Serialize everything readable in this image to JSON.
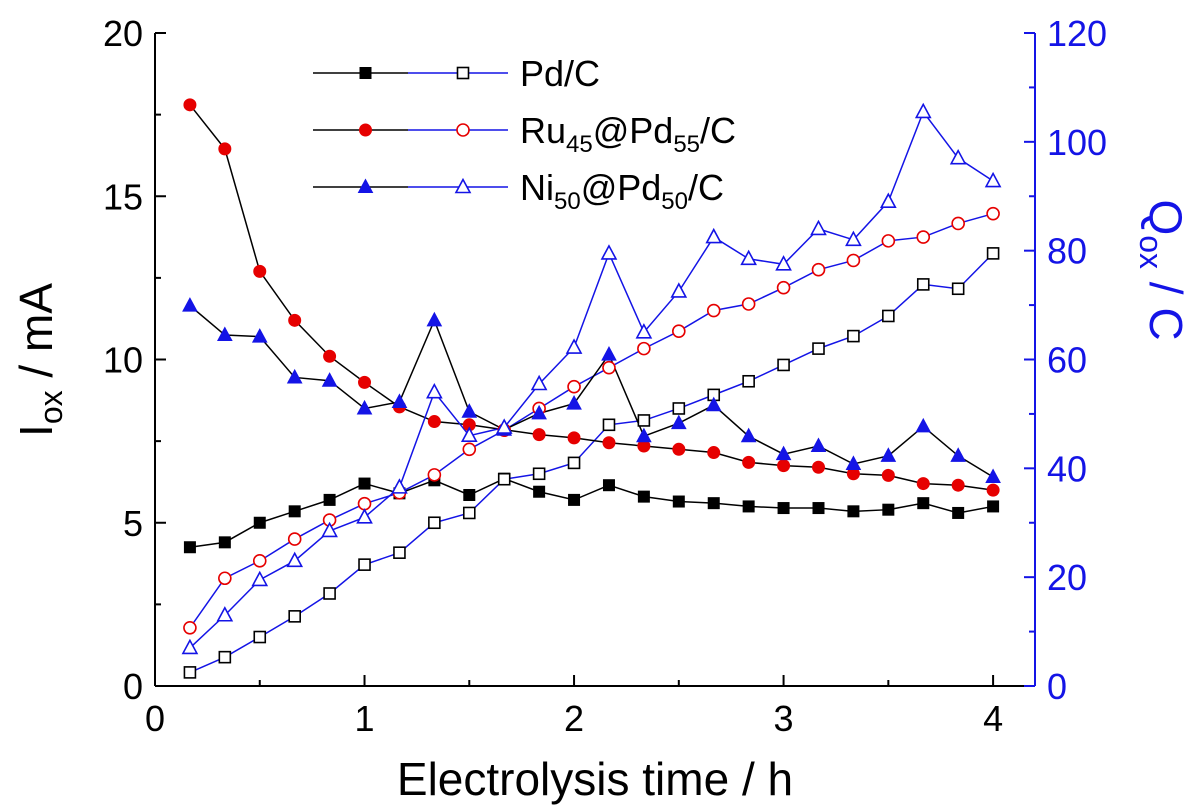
{
  "chart_data": {
    "type": "line",
    "xlabel": "Electrolysis time / h",
    "ylabel_left": {
      "main": "I",
      "sub": "ox",
      "rest": " / mA"
    },
    "ylabel_right": {
      "main": "Q",
      "sub": "ox",
      "rest": " / C"
    },
    "xlim": [
      0,
      4.2
    ],
    "ylim_left": [
      0,
      20
    ],
    "ylim_right": [
      0,
      120
    ],
    "xticks": [
      "0",
      "1",
      "2",
      "3",
      "4"
    ],
    "yticks_left": [
      "0",
      "5",
      "10",
      "15",
      "20"
    ],
    "yticks_right": [
      "0",
      "20",
      "40",
      "60",
      "80",
      "100",
      "120"
    ],
    "right_axis_color": "#1414e6",
    "legend_position": "top-center",
    "legend": [
      {
        "parts": [
          {
            "t": "Pd/C"
          }
        ]
      },
      {
        "parts": [
          {
            "t": "Ru"
          },
          {
            "t": "45",
            "sub": true
          },
          {
            "t": "@Pd"
          },
          {
            "t": "55",
            "sub": true
          },
          {
            "t": "/C"
          }
        ]
      },
      {
        "parts": [
          {
            "t": "Ni"
          },
          {
            "t": "50",
            "sub": true
          },
          {
            "t": "@Pd"
          },
          {
            "t": "50",
            "sub": true
          },
          {
            "t": "/C"
          }
        ]
      }
    ],
    "x": [
      0.1667,
      0.3333,
      0.5,
      0.6667,
      0.8333,
      1.0,
      1.1667,
      1.3333,
      1.5,
      1.6667,
      1.8333,
      2.0,
      2.1667,
      2.3333,
      2.5,
      2.6667,
      2.8333,
      3.0,
      3.1667,
      3.3333,
      3.5,
      3.6667,
      3.8333,
      4.0
    ],
    "series": [
      {
        "catalyst": 0,
        "axis": "left",
        "marker": "square",
        "filled": true,
        "color": "#000000",
        "line_color": "#000000",
        "values": [
          4.25,
          4.4,
          5.0,
          5.35,
          5.7,
          6.2,
          5.9,
          6.3,
          5.85,
          6.35,
          5.95,
          5.7,
          6.15,
          5.8,
          5.65,
          5.6,
          5.5,
          5.45,
          5.45,
          5.35,
          5.4,
          5.6,
          5.3,
          5.5
        ]
      },
      {
        "catalyst": 0,
        "axis": "right",
        "marker": "square",
        "filled": false,
        "color": "#000000",
        "line_color": "#1414e6",
        "values": [
          2.5,
          5.3,
          9.0,
          12.8,
          17.0,
          22.3,
          24.5,
          30.0,
          31.8,
          38.0,
          39.0,
          41.0,
          48.0,
          48.8,
          51.0,
          53.5,
          56.0,
          59.0,
          62.0,
          64.3,
          68.0,
          73.8,
          73.0,
          79.5
        ]
      },
      {
        "catalyst": 1,
        "axis": "left",
        "marker": "circle",
        "filled": true,
        "color": "#e60000",
        "line_color": "#000000",
        "values": [
          17.8,
          16.45,
          12.7,
          11.2,
          10.1,
          9.3,
          8.55,
          8.1,
          8.0,
          7.85,
          7.7,
          7.6,
          7.45,
          7.35,
          7.25,
          7.15,
          6.85,
          6.75,
          6.7,
          6.5,
          6.45,
          6.2,
          6.15,
          6.0
        ]
      },
      {
        "catalyst": 1,
        "axis": "right",
        "marker": "circle",
        "filled": false,
        "color": "#e60000",
        "line_color": "#1414e6",
        "values": [
          10.7,
          19.8,
          23.0,
          27.0,
          30.5,
          33.5,
          35.5,
          38.8,
          43.5,
          47.0,
          51.0,
          55.0,
          58.5,
          62.0,
          65.2,
          69.0,
          70.2,
          73.2,
          76.5,
          78.2,
          81.8,
          82.5,
          85.0,
          86.8
        ]
      },
      {
        "catalyst": 2,
        "axis": "left",
        "marker": "triangle",
        "filled": true,
        "color": "#1414e6",
        "line_color": "#000000",
        "values": [
          11.65,
          10.75,
          10.7,
          9.45,
          9.35,
          8.5,
          8.7,
          11.2,
          8.4,
          7.85,
          8.35,
          8.65,
          10.15,
          7.65,
          8.05,
          8.6,
          7.65,
          7.1,
          7.35,
          6.8,
          7.05,
          7.95,
          7.05,
          6.4
        ]
      },
      {
        "catalyst": 2,
        "axis": "right",
        "marker": "triangle",
        "filled": false,
        "color": "#1414e6",
        "line_color": "#1414e6",
        "values": [
          7.0,
          13.0,
          19.5,
          23.0,
          28.5,
          31.0,
          36.5,
          54.0,
          46.0,
          47.5,
          55.5,
          62.2,
          79.5,
          65.0,
          72.5,
          82.5,
          78.5,
          77.5,
          84.0,
          82.0,
          89.0,
          105.5,
          97.0,
          92.8
        ]
      }
    ]
  }
}
